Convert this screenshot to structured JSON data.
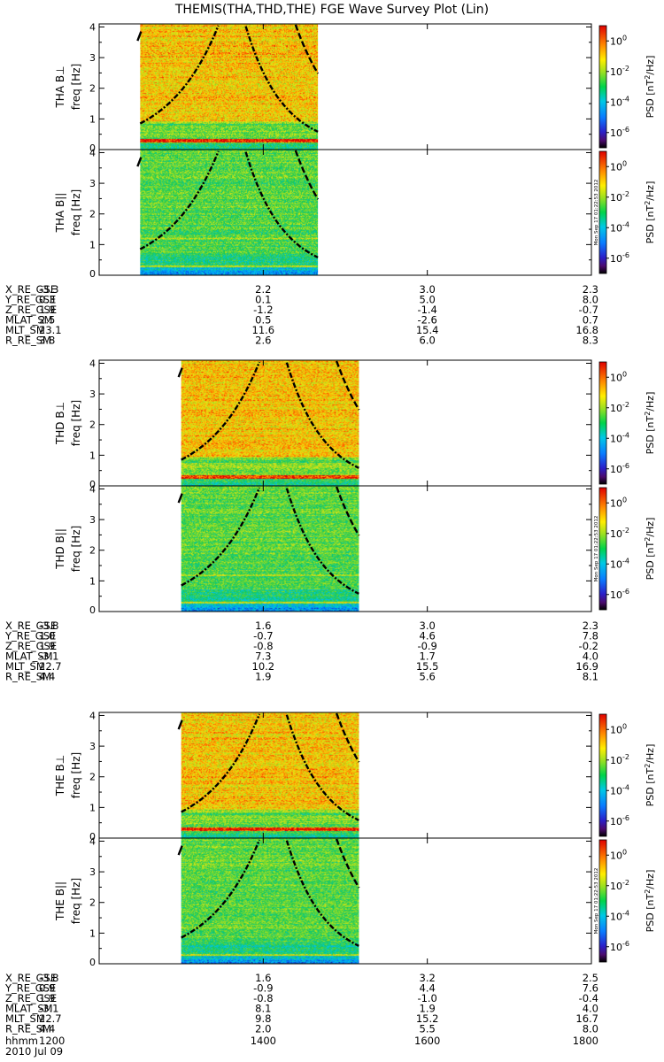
{
  "chart_data": {
    "type": "heatmap",
    "title": "THEMIS(THA,THD,THE) FGE Wave Survey Plot (Lin)",
    "x_axis": {
      "unit_label": "hhmm",
      "date": "2010 Jul 09",
      "ticks": [
        "1200",
        "1400",
        "1600",
        "1800"
      ],
      "range": [
        "1200",
        "1800"
      ]
    },
    "freq_axis": {
      "label": "freq [Hz]",
      "range": [
        0,
        4.1
      ],
      "ticks": [
        "0",
        "1",
        "2",
        "3",
        "4"
      ]
    },
    "colorbar": {
      "label": "PSD [nT²/Hz]",
      "label_main": "PSD [nT",
      "label_sup": "2",
      "label_tail": "/Hz]",
      "scale": "log",
      "range": [
        1e-07,
        10.0
      ],
      "tick_values": [
        1,
        0.01,
        0.0001,
        1e-06
      ],
      "tick_labels": [
        {
          "base": "10",
          "exp": "0"
        },
        {
          "base": "10",
          "exp": "-2"
        },
        {
          "base": "10",
          "exp": "-4"
        },
        {
          "base": "10",
          "exp": "-6"
        }
      ]
    },
    "timestamp": "Mon Sep 17 01:22:53 2012",
    "probes": [
      {
        "name": "THA",
        "panels": [
          {
            "label": "THA B⊥",
            "component": "perp",
            "data_start": "1230",
            "data_end": "1440"
          },
          {
            "label": "THA B||",
            "component": "par",
            "data_start": "1230",
            "data_end": "1440"
          }
        ],
        "orbit": [
          {
            "name": "X_RE_GSE",
            "values": [
              "-3.3",
              "2.2",
              "3.0",
              "2.3"
            ]
          },
          {
            "name": "Y_RE_GSE",
            "values": [
              "0.3",
              "0.1",
              "5.0",
              "8.0"
            ]
          },
          {
            "name": "Z_RE_GSE",
            "values": [
              "1.9",
              "-1.2",
              "-1.4",
              "-0.7"
            ]
          },
          {
            "name": "MLAT_SM",
            "values": [
              "2.5",
              "0.5",
              "-2.6",
              "0.7"
            ]
          },
          {
            "name": "MLT_SM",
            "values": [
              "23.1",
              "11.6",
              "15.4",
              "16.8"
            ]
          },
          {
            "name": "R_RE_SM",
            "values": [
              "3.8",
              "2.6",
              "6.0",
              "8.3"
            ]
          }
        ]
      },
      {
        "name": "THD",
        "panels": [
          {
            "label": "THD B⊥",
            "component": "perp",
            "data_start": "1300",
            "data_end": "1510"
          },
          {
            "label": "THD B||",
            "component": "par",
            "data_start": "1300",
            "data_end": "1510"
          }
        ],
        "orbit": [
          {
            "name": "X_RE_GSE",
            "values": [
              "-3.8",
              "1.6",
              "3.0",
              "2.3"
            ]
          },
          {
            "name": "Y_RE_GSE",
            "values": [
              "1.0",
              "-0.7",
              "4.6",
              "7.8"
            ]
          },
          {
            "name": "Z_RE_GSE",
            "values": [
              "1.9",
              "-0.8",
              "-0.9",
              "-0.2"
            ]
          },
          {
            "name": "MLAT_SM",
            "values": [
              "-3.1",
              "7.3",
              "1.7",
              "4.0"
            ]
          },
          {
            "name": "MLT_SM",
            "values": [
              "22.7",
              "10.2",
              "15.5",
              "16.9"
            ]
          },
          {
            "name": "R_RE_SM",
            "values": [
              "4.4",
              "1.9",
              "5.6",
              "8.1"
            ]
          }
        ]
      },
      {
        "name": "THE",
        "panels": [
          {
            "label": "THE B⊥",
            "component": "perp",
            "data_start": "1300",
            "data_end": "1510"
          },
          {
            "label": "THE B||",
            "component": "par",
            "data_start": "1300",
            "data_end": "1510"
          }
        ],
        "orbit": [
          {
            "name": "X_RE_GSE",
            "values": [
              "-3.8",
              "1.6",
              "3.2",
              "2.5"
            ]
          },
          {
            "name": "Y_RE_GSE",
            "values": [
              "0.9",
              "-0.9",
              "4.4",
              "7.6"
            ]
          },
          {
            "name": "Z_RE_GSE",
            "values": [
              "1.9",
              "-0.8",
              "-1.0",
              "-0.4"
            ]
          },
          {
            "name": "MLAT_SM",
            "values": [
              "-3.1",
              "8.1",
              "1.9",
              "4.0"
            ]
          },
          {
            "name": "MLT_SM",
            "values": [
              "22.7",
              "9.8",
              "15.2",
              "16.7"
            ]
          },
          {
            "name": "R_RE_SM",
            "values": [
              "4.4",
              "2.0",
              "5.5",
              "8.0"
            ]
          }
        ]
      }
    ]
  }
}
